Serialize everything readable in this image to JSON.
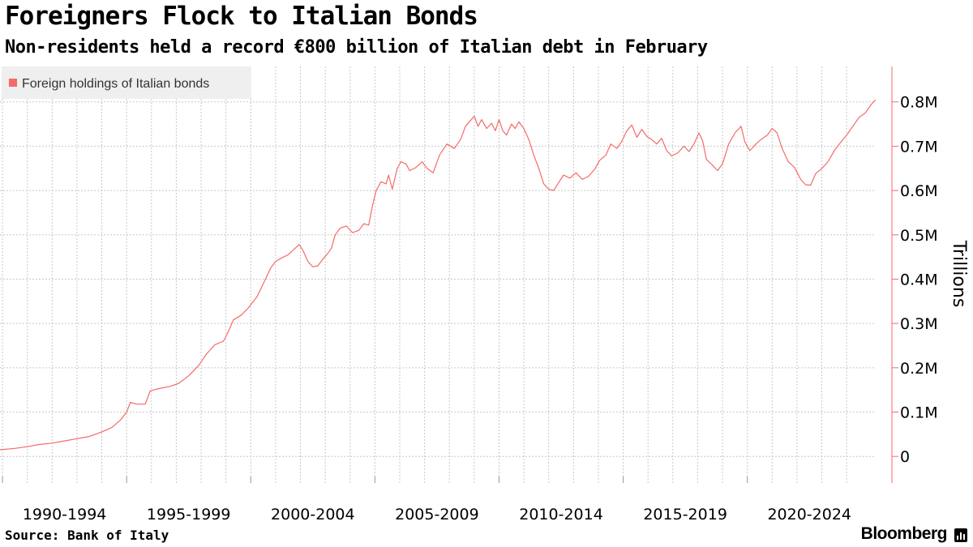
{
  "header": {
    "title": "Foreigners Flock to Italian Bonds",
    "subtitle": "Non-residents held a record €800 billion of Italian debt in February"
  },
  "footer": {
    "source": "Source: Bank of Italy",
    "brand": "Bloomberg",
    "brand_icon": "bloomberg-terminal-icon"
  },
  "colors": {
    "series": "#f46a6a",
    "grid": "#c8c8c8",
    "legend_bg": "#efefef"
  },
  "chart_data": {
    "type": "line",
    "title": "Foreigners Flock to Italian Bonds",
    "ylabel": "Trillions",
    "xlabel": "",
    "x_start": 1989.9,
    "x_end": 2025.17,
    "ylim": [
      -0.06,
      0.88
    ],
    "y_ticks": [
      0,
      0.1,
      0.2,
      0.3,
      0.4,
      0.5,
      0.6,
      0.7,
      0.8
    ],
    "y_tick_labels": [
      "0",
      "0.1M",
      "0.2M",
      "0.3M",
      "0.4M",
      "0.5M",
      "0.6M",
      "0.7M",
      "0.8M"
    ],
    "x_tick_labels": [
      "1990-1994",
      "1995-1999",
      "2000-2004",
      "2005-2009",
      "2010-2014",
      "2015-2019",
      "2020-2024"
    ],
    "x_gridlines": [
      1990,
      1991,
      1992,
      1993,
      1994,
      1995,
      1996,
      1997,
      1998,
      1999,
      2000,
      2001,
      2002,
      2003,
      2004,
      2005,
      2006,
      2007,
      2008,
      2009,
      2010,
      2011,
      2012,
      2013,
      2014,
      2015,
      2016,
      2017,
      2018,
      2019,
      2020,
      2021,
      2022,
      2023,
      2024
    ],
    "legend": {
      "position": "top-left"
    },
    "grid": true,
    "series": [
      {
        "name": "Foreign holdings of Italian bonds",
        "points": [
          [
            1989.9,
            0.015
          ],
          [
            1990.5,
            0.018
          ],
          [
            1991.0,
            0.022
          ],
          [
            1991.5,
            0.027
          ],
          [
            1992.0,
            0.03
          ],
          [
            1992.5,
            0.035
          ],
          [
            1993.0,
            0.04
          ],
          [
            1993.5,
            0.045
          ],
          [
            1994.0,
            0.055
          ],
          [
            1994.4,
            0.065
          ],
          [
            1994.75,
            0.082
          ],
          [
            1995.0,
            0.1
          ],
          [
            1995.15,
            0.122
          ],
          [
            1995.4,
            0.118
          ],
          [
            1995.75,
            0.118
          ],
          [
            1995.95,
            0.148
          ],
          [
            1996.3,
            0.153
          ],
          [
            1996.75,
            0.158
          ],
          [
            1997.1,
            0.165
          ],
          [
            1997.5,
            0.182
          ],
          [
            1997.9,
            0.205
          ],
          [
            1998.2,
            0.23
          ],
          [
            1998.55,
            0.252
          ],
          [
            1998.9,
            0.26
          ],
          [
            1999.1,
            0.282
          ],
          [
            1999.3,
            0.308
          ],
          [
            1999.6,
            0.318
          ],
          [
            1999.9,
            0.335
          ],
          [
            2000.25,
            0.36
          ],
          [
            2000.55,
            0.395
          ],
          [
            2000.8,
            0.425
          ],
          [
            2001.0,
            0.44
          ],
          [
            2001.25,
            0.448
          ],
          [
            2001.5,
            0.455
          ],
          [
            2001.75,
            0.468
          ],
          [
            2001.95,
            0.478
          ],
          [
            2002.1,
            0.465
          ],
          [
            2002.3,
            0.44
          ],
          [
            2002.5,
            0.428
          ],
          [
            2002.7,
            0.43
          ],
          [
            2002.9,
            0.445
          ],
          [
            2003.1,
            0.458
          ],
          [
            2003.25,
            0.47
          ],
          [
            2003.4,
            0.5
          ],
          [
            2003.6,
            0.515
          ],
          [
            2003.85,
            0.52
          ],
          [
            2004.1,
            0.505
          ],
          [
            2004.35,
            0.51
          ],
          [
            2004.55,
            0.525
          ],
          [
            2004.75,
            0.522
          ],
          [
            2004.9,
            0.565
          ],
          [
            2005.05,
            0.6
          ],
          [
            2005.25,
            0.62
          ],
          [
            2005.45,
            0.615
          ],
          [
            2005.55,
            0.635
          ],
          [
            2005.7,
            0.603
          ],
          [
            2005.9,
            0.65
          ],
          [
            2006.05,
            0.665
          ],
          [
            2006.25,
            0.66
          ],
          [
            2006.4,
            0.645
          ],
          [
            2006.65,
            0.652
          ],
          [
            2006.9,
            0.665
          ],
          [
            2007.1,
            0.65
          ],
          [
            2007.35,
            0.64
          ],
          [
            2007.6,
            0.68
          ],
          [
            2007.9,
            0.705
          ],
          [
            2008.2,
            0.695
          ],
          [
            2008.45,
            0.715
          ],
          [
            2008.65,
            0.745
          ],
          [
            2008.85,
            0.758
          ],
          [
            2009.0,
            0.768
          ],
          [
            2009.15,
            0.745
          ],
          [
            2009.3,
            0.76
          ],
          [
            2009.5,
            0.74
          ],
          [
            2009.7,
            0.752
          ],
          [
            2009.85,
            0.735
          ],
          [
            2010.0,
            0.76
          ],
          [
            2010.15,
            0.735
          ],
          [
            2010.3,
            0.725
          ],
          [
            2010.5,
            0.75
          ],
          [
            2010.65,
            0.74
          ],
          [
            2010.8,
            0.755
          ],
          [
            2011.0,
            0.74
          ],
          [
            2011.2,
            0.715
          ],
          [
            2011.4,
            0.68
          ],
          [
            2011.6,
            0.65
          ],
          [
            2011.8,
            0.615
          ],
          [
            2012.0,
            0.603
          ],
          [
            2012.2,
            0.6
          ],
          [
            2012.4,
            0.618
          ],
          [
            2012.6,
            0.635
          ],
          [
            2012.85,
            0.628
          ],
          [
            2013.1,
            0.64
          ],
          [
            2013.35,
            0.625
          ],
          [
            2013.6,
            0.632
          ],
          [
            2013.85,
            0.648
          ],
          [
            2014.05,
            0.668
          ],
          [
            2014.3,
            0.68
          ],
          [
            2014.5,
            0.705
          ],
          [
            2014.75,
            0.695
          ],
          [
            2014.95,
            0.712
          ],
          [
            2015.15,
            0.735
          ],
          [
            2015.35,
            0.748
          ],
          [
            2015.55,
            0.72
          ],
          [
            2015.75,
            0.738
          ],
          [
            2015.95,
            0.722
          ],
          [
            2016.15,
            0.715
          ],
          [
            2016.35,
            0.705
          ],
          [
            2016.55,
            0.718
          ],
          [
            2016.75,
            0.69
          ],
          [
            2016.95,
            0.678
          ],
          [
            2017.2,
            0.685
          ],
          [
            2017.45,
            0.7
          ],
          [
            2017.65,
            0.688
          ],
          [
            2017.85,
            0.705
          ],
          [
            2018.05,
            0.73
          ],
          [
            2018.2,
            0.712
          ],
          [
            2018.35,
            0.67
          ],
          [
            2018.55,
            0.66
          ],
          [
            2018.8,
            0.645
          ],
          [
            2019.0,
            0.66
          ],
          [
            2019.25,
            0.705
          ],
          [
            2019.5,
            0.73
          ],
          [
            2019.75,
            0.745
          ],
          [
            2019.9,
            0.71
          ],
          [
            2020.1,
            0.69
          ],
          [
            2020.35,
            0.705
          ],
          [
            2020.55,
            0.715
          ],
          [
            2020.8,
            0.725
          ],
          [
            2021.0,
            0.74
          ],
          [
            2021.2,
            0.73
          ],
          [
            2021.4,
            0.695
          ],
          [
            2021.65,
            0.665
          ],
          [
            2021.9,
            0.652
          ],
          [
            2022.15,
            0.625
          ],
          [
            2022.35,
            0.613
          ],
          [
            2022.55,
            0.612
          ],
          [
            2022.75,
            0.638
          ],
          [
            2023.0,
            0.65
          ],
          [
            2023.25,
            0.665
          ],
          [
            2023.5,
            0.69
          ],
          [
            2023.75,
            0.708
          ],
          [
            2024.0,
            0.725
          ],
          [
            2024.25,
            0.745
          ],
          [
            2024.5,
            0.765
          ],
          [
            2024.75,
            0.775
          ],
          [
            2025.0,
            0.795
          ],
          [
            2025.17,
            0.805
          ]
        ]
      }
    ]
  }
}
